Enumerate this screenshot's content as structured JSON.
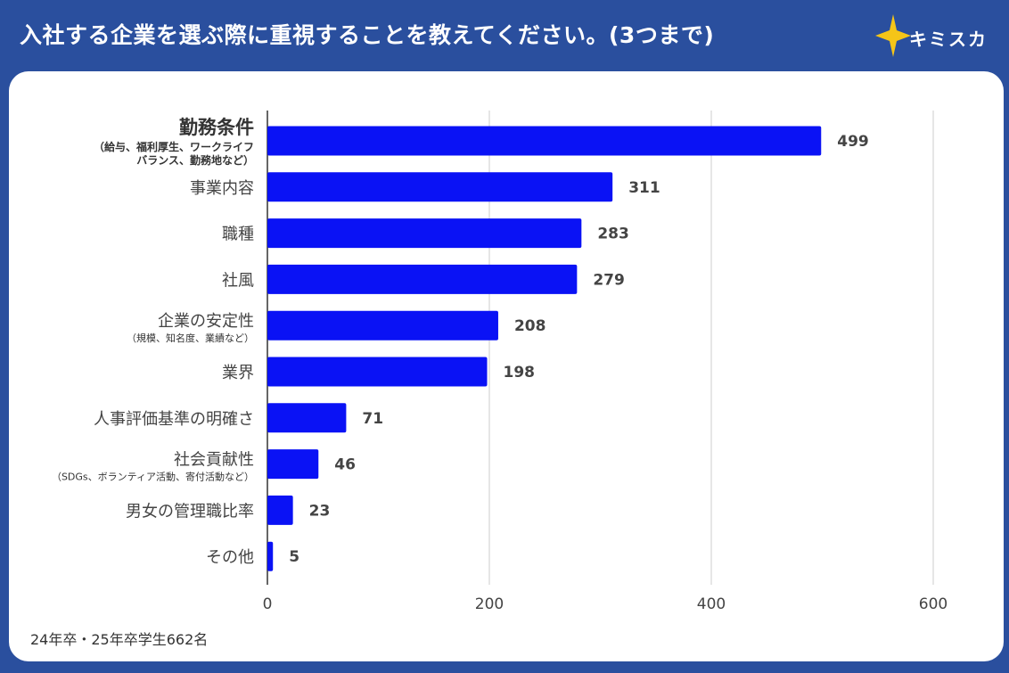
{
  "title": "入社する企業を選ぶ際に重視することを教えてください。(3つまで)",
  "brand": {
    "name": "キミスカ",
    "icon": "star-icon",
    "star_color": "#f5c518"
  },
  "footnote": "24年卒・25年卒学生662名",
  "colors": {
    "background": "#2a4f9e",
    "bar": "#0a12f5",
    "card": "#ffffff"
  },
  "chart_data": {
    "type": "bar",
    "orientation": "horizontal",
    "categories": [
      {
        "label": "勤務条件",
        "sub": [
          "（給与、福利厚生、ワークライフ",
          "バランス、勤務地など）"
        ],
        "emphasis": true
      },
      {
        "label": "事業内容",
        "sub": []
      },
      {
        "label": "職種",
        "sub": []
      },
      {
        "label": "社風",
        "sub": []
      },
      {
        "label": "企業の安定性",
        "sub": [
          "（規模、知名度、業績など）"
        ]
      },
      {
        "label": "業界",
        "sub": []
      },
      {
        "label": "人事評価基準の明確さ",
        "sub": []
      },
      {
        "label": "社会貢献性",
        "sub": [
          "（SDGs、ボランティア活動、寄付活動など）"
        ]
      },
      {
        "label": "男女の管理職比率",
        "sub": []
      },
      {
        "label": "その他",
        "sub": []
      }
    ],
    "values": [
      499,
      311,
      283,
      279,
      208,
      198,
      71,
      46,
      23,
      5
    ],
    "xlim": [
      0,
      600
    ],
    "xticks": [
      0,
      200,
      400,
      600
    ],
    "grid": true
  }
}
